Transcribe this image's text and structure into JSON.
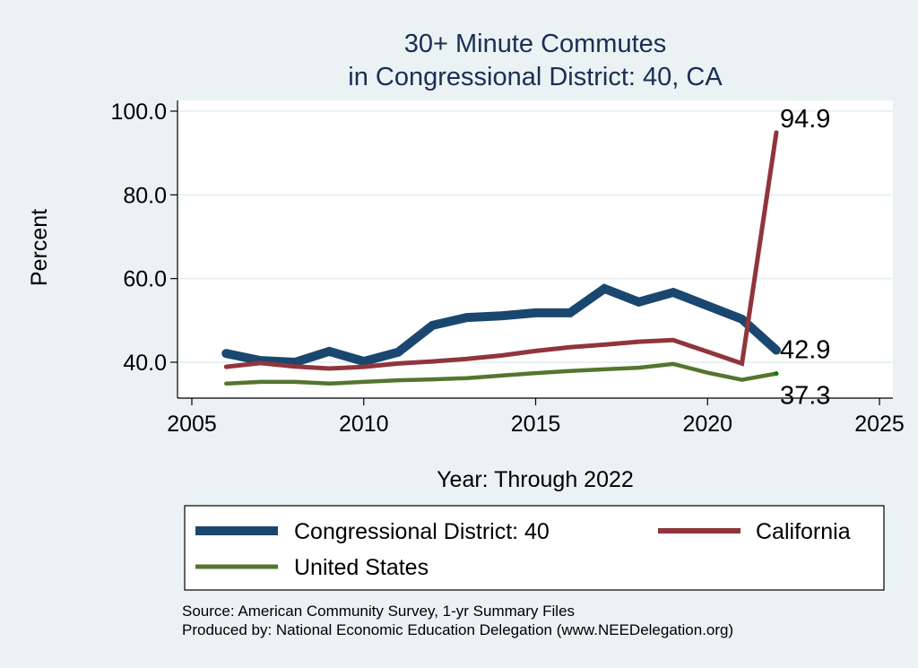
{
  "chart_data": {
    "type": "line",
    "title": "30+ Minute Commutes",
    "subtitle": "in Congressional District:  40, CA",
    "xlabel": "Year: Through 2022",
    "ylabel": "Percent",
    "xlim": [
      2005,
      2025
    ],
    "ylim": [
      33,
      102
    ],
    "xticks": [
      2005,
      2010,
      2015,
      2020,
      2025
    ],
    "yticks": [
      40,
      60,
      80,
      100
    ],
    "ytick_labels": [
      "40.0",
      "60.0",
      "80.0",
      "100.0"
    ],
    "grid": true,
    "x": [
      2006,
      2007,
      2008,
      2009,
      2010,
      2011,
      2012,
      2013,
      2014,
      2015,
      2016,
      2017,
      2018,
      2019,
      2020,
      2021,
      2022
    ],
    "series": [
      {
        "name": "Congressional District:  40",
        "color": "#1a476f",
        "values": [
          42.1,
          40.4,
          40.0,
          42.6,
          40.2,
          42.4,
          48.8,
          50.7,
          51.1,
          51.8,
          51.8,
          57.6,
          54.4,
          56.7,
          53.5,
          50.3,
          42.9
        ],
        "end_label": "42.9"
      },
      {
        "name": "California",
        "color": "#90353b",
        "values": [
          38.9,
          39.8,
          39.0,
          38.5,
          38.9,
          39.7,
          40.2,
          40.8,
          41.6,
          42.7,
          43.6,
          44.2,
          44.9,
          45.3,
          42.5,
          39.7,
          94.9
        ],
        "end_label": "94.9"
      },
      {
        "name": "United States",
        "color": "#55752f",
        "values": [
          34.9,
          35.3,
          35.3,
          34.9,
          35.3,
          35.7,
          35.9,
          36.2,
          36.8,
          37.4,
          37.9,
          38.3,
          38.7,
          39.6,
          37.5,
          35.8,
          37.3
        ],
        "end_label": "37.3"
      }
    ],
    "legend": {
      "placement": "bottom",
      "entries": [
        "Congressional District:  40",
        "California",
        "United States"
      ]
    },
    "notes": [
      "Source: American Community Survey, 1-yr Summary Files",
      "Produced by: National Economic Education Delegation (www.NEEDelegation.org)"
    ]
  }
}
